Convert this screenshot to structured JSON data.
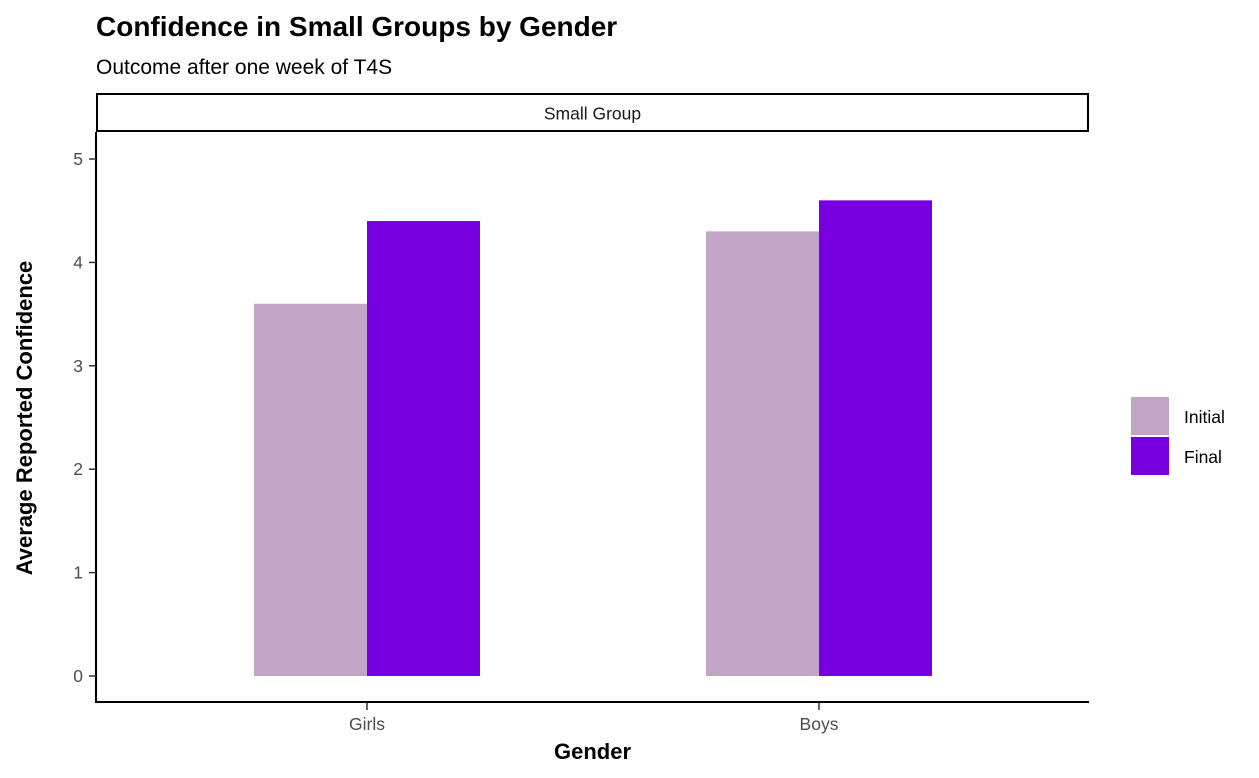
{
  "chart_data": {
    "type": "bar",
    "title": "Confidence in Small Groups by Gender",
    "subtitle": "Outcome after one week of T4S",
    "facet": "Small Group",
    "xlabel": "Gender",
    "ylabel": "Average Reported Confidence",
    "categories": [
      "Girls",
      "Boys"
    ],
    "series": [
      {
        "name": "Initial",
        "values": [
          3.6,
          4.3
        ],
        "color": "#c1a5c4"
      },
      {
        "name": "Final",
        "values": [
          4.4,
          4.6
        ],
        "color": "#7600e0"
      }
    ],
    "ylim": [
      0,
      5
    ],
    "yticks": [
      "0",
      "1",
      "2",
      "3",
      "4",
      "5"
    ],
    "grid": false,
    "legend_position": "right"
  }
}
